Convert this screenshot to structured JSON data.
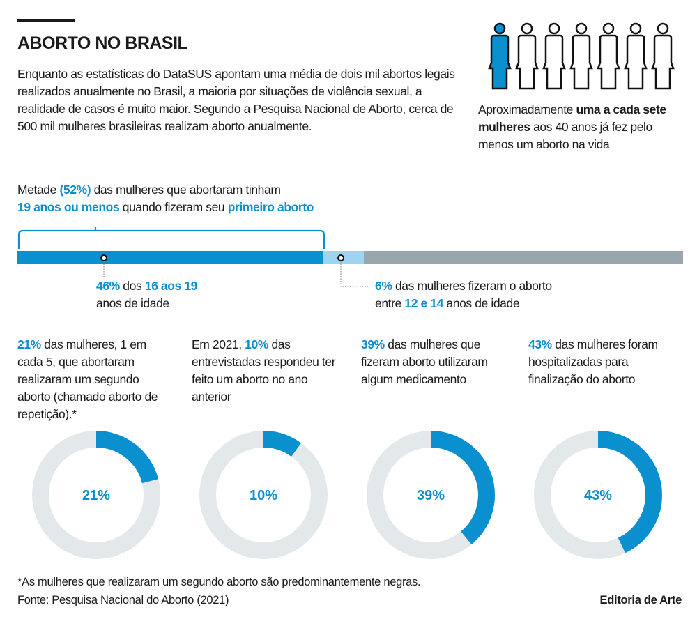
{
  "header": {
    "title": "ABORTO NO BRASIL",
    "intro": "Enquanto as estatísticas do DataSUS apontam uma média de dois mil abortos legais realizados anualmente no Brasil, a maioria por situações de violência sexual, a realidade de casos é muito maior. Segundo a Pesquisa Nacional de Aborto, cerca de 500 mil mulheres brasileiras realizam aborto anualmente."
  },
  "ratio": {
    "total": 7,
    "highlighted": 1,
    "pre": "Aproximadamente ",
    "bold": "uma a cada sete mulheres",
    "post": " aos 40 anos já fez pelo menos um aborto na vida"
  },
  "age_bar": {
    "headline": {
      "p1": "Metade ",
      "p2": "(52%)",
      "p3": " das mulheres que abortaram tinham ",
      "p4": "19 anos ou menos",
      "p5": " quando fizeram seu ",
      "p6": "primeiro aborto"
    },
    "segments": [
      {
        "value": 46,
        "color": "#0a8fcf"
      },
      {
        "value": 6,
        "color": "#9dd4ef"
      },
      {
        "value": 48,
        "color": "#99a6ad"
      }
    ],
    "label46": {
      "a": "46%",
      "b": " dos ",
      "c": "16 aos 19",
      "d": "anos de idade"
    },
    "label6": {
      "a": "6%",
      "b": " das mulheres fizeram o aborto",
      "c": "entre ",
      "d": "12 e 14",
      "e": " anos de idade"
    }
  },
  "colors": {
    "accent": "#0a8fcf",
    "track": "#e3e8eb"
  },
  "chart_data": [
    {
      "type": "pie",
      "variant": "donut",
      "values": [
        21,
        79
      ],
      "center_label": "21%",
      "caption": {
        "hl": "21%",
        "rest": " das mulheres, 1 em cada 5, que abortaram realizaram um segundo aborto (chamado aborto de repetição).*"
      }
    },
    {
      "type": "pie",
      "variant": "donut",
      "values": [
        10,
        90
      ],
      "center_label": "10%",
      "caption": {
        "pre": "Em 2021, ",
        "hl": "10%",
        "rest": " das entrevistadas respondeu ter feito um aborto no ano anterior"
      }
    },
    {
      "type": "pie",
      "variant": "donut",
      "values": [
        39,
        61
      ],
      "center_label": "39%",
      "caption": {
        "hl": "39%",
        "rest": " das mulheres que fizeram aborto utilizaram algum medicamento"
      }
    },
    {
      "type": "pie",
      "variant": "donut",
      "values": [
        43,
        57
      ],
      "center_label": "43%",
      "caption": {
        "hl": "43%",
        "rest": " das mulheres foram hospitalizadas para finalização do aborto"
      }
    }
  ],
  "footer": {
    "note": "*As mulheres que realizaram um segundo aborto são predominantemente negras.",
    "source": "Fonte: Pesquisa Nacional do Aborto (2021)",
    "credit": "Editoria de Arte"
  }
}
